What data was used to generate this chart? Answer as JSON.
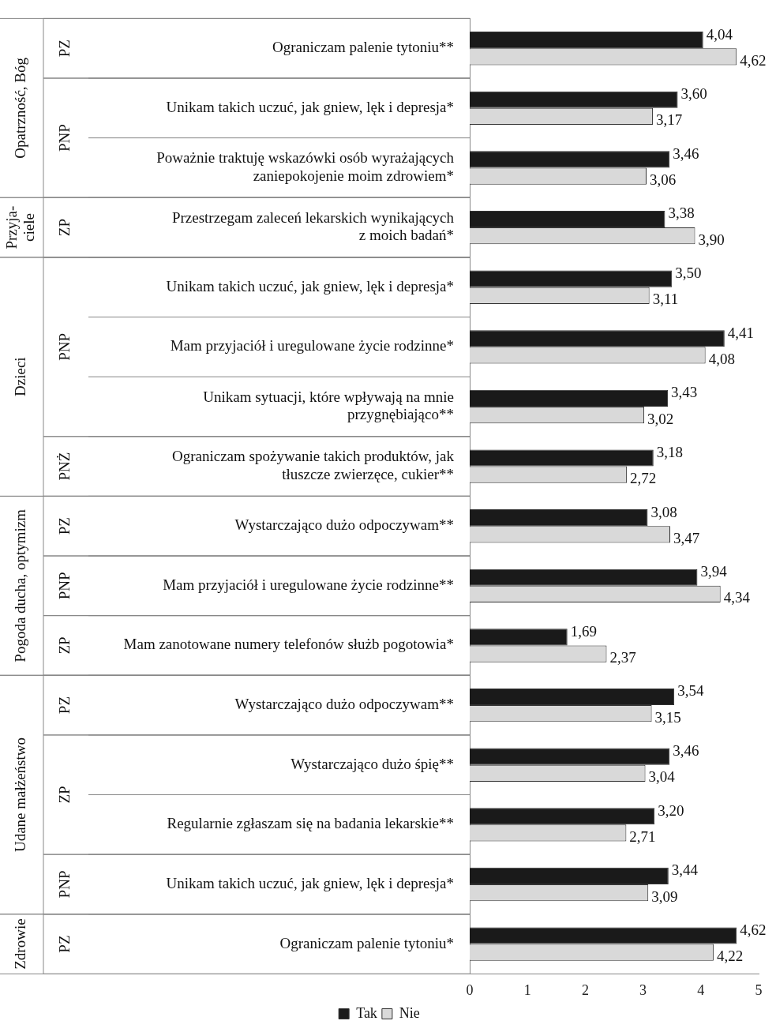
{
  "chart_data": {
    "type": "bar",
    "orientation": "horizontal",
    "categories": [
      "Ograniczam palenie tytoniu**",
      "Unikam takich uczuć, jak gniew, lęk i depresja*",
      "Poważnie traktuję wskazówki osób wyrażających\nzaniepokojenie moim zdrowiem*",
      "Przestrzegam zaleceń lekarskich wynikających\nz moich badań*",
      "Unikam takich uczuć, jak gniew, lęk i depresja*",
      "Mam przyjaciół i uregulowane życie rodzinne*",
      "Unikam sytuacji, które wpływają na mnie\nprzygnębiająco**",
      "Ograniczam spożywanie takich produktów, jak\ntłuszcze zwierzęce, cukier**",
      "Wystarczająco dużo odpoczywam**",
      "Mam przyjaciół i uregulowane życie rodzinne**",
      "Mam zanotowane numery telefonów służb pogotowia*",
      "Wystarczająco dużo odpoczywam**",
      "Wystarczająco dużo śpię**",
      "Regularnie zgłaszam się na badania lekarskie**",
      "Unikam takich uczuć, jak gniew, lęk i depresja*",
      "Ograniczam palenie tytoniu*"
    ],
    "series": [
      {
        "name": "Tak",
        "color": "#1a1a1a",
        "values": [
          4.04,
          3.6,
          3.46,
          3.38,
          3.5,
          4.41,
          3.43,
          3.18,
          3.08,
          3.94,
          1.69,
          3.54,
          3.46,
          3.2,
          3.44,
          4.62
        ],
        "value_labels": [
          "4,04",
          "3,60",
          "3,46",
          "3,38",
          "3,50",
          "4,41",
          "3,43",
          "3,18",
          "3,08",
          "3,94",
          "1,69",
          "3,54",
          "3,46",
          "3,20",
          "3,44",
          "4,62"
        ]
      },
      {
        "name": "Nie",
        "color": "#d9d9d9",
        "values": [
          4.62,
          3.17,
          3.06,
          3.9,
          3.11,
          4.08,
          3.02,
          2.72,
          3.47,
          4.34,
          2.37,
          3.15,
          3.04,
          2.71,
          3.09,
          4.22
        ],
        "value_labels": [
          "4,62",
          "3,17",
          "3,06",
          "3,90",
          "3,11",
          "4,08",
          "3,02",
          "2,72",
          "3,47",
          "4,34",
          "2,37",
          "3,15",
          "3,04",
          "2,71",
          "3,09",
          "4,22"
        ]
      }
    ],
    "xlim": [
      0,
      5
    ],
    "xticks": [
      0,
      1,
      2,
      3,
      4,
      5
    ],
    "grid": false,
    "legend": "bottom",
    "annotations": [
      "Opatrzność, Bóg",
      "Przyja-\nciele",
      "Dzieci",
      "Pogoda ducha, optymizm",
      "Udane małżeństwo",
      "Zdrowie",
      "PZ",
      "PNP",
      "ZP",
      "PNP",
      "PNŻ",
      "PZ",
      "PNP",
      "ZP",
      "PZ",
      "ZP",
      "PNP",
      "PZ"
    ]
  }
}
